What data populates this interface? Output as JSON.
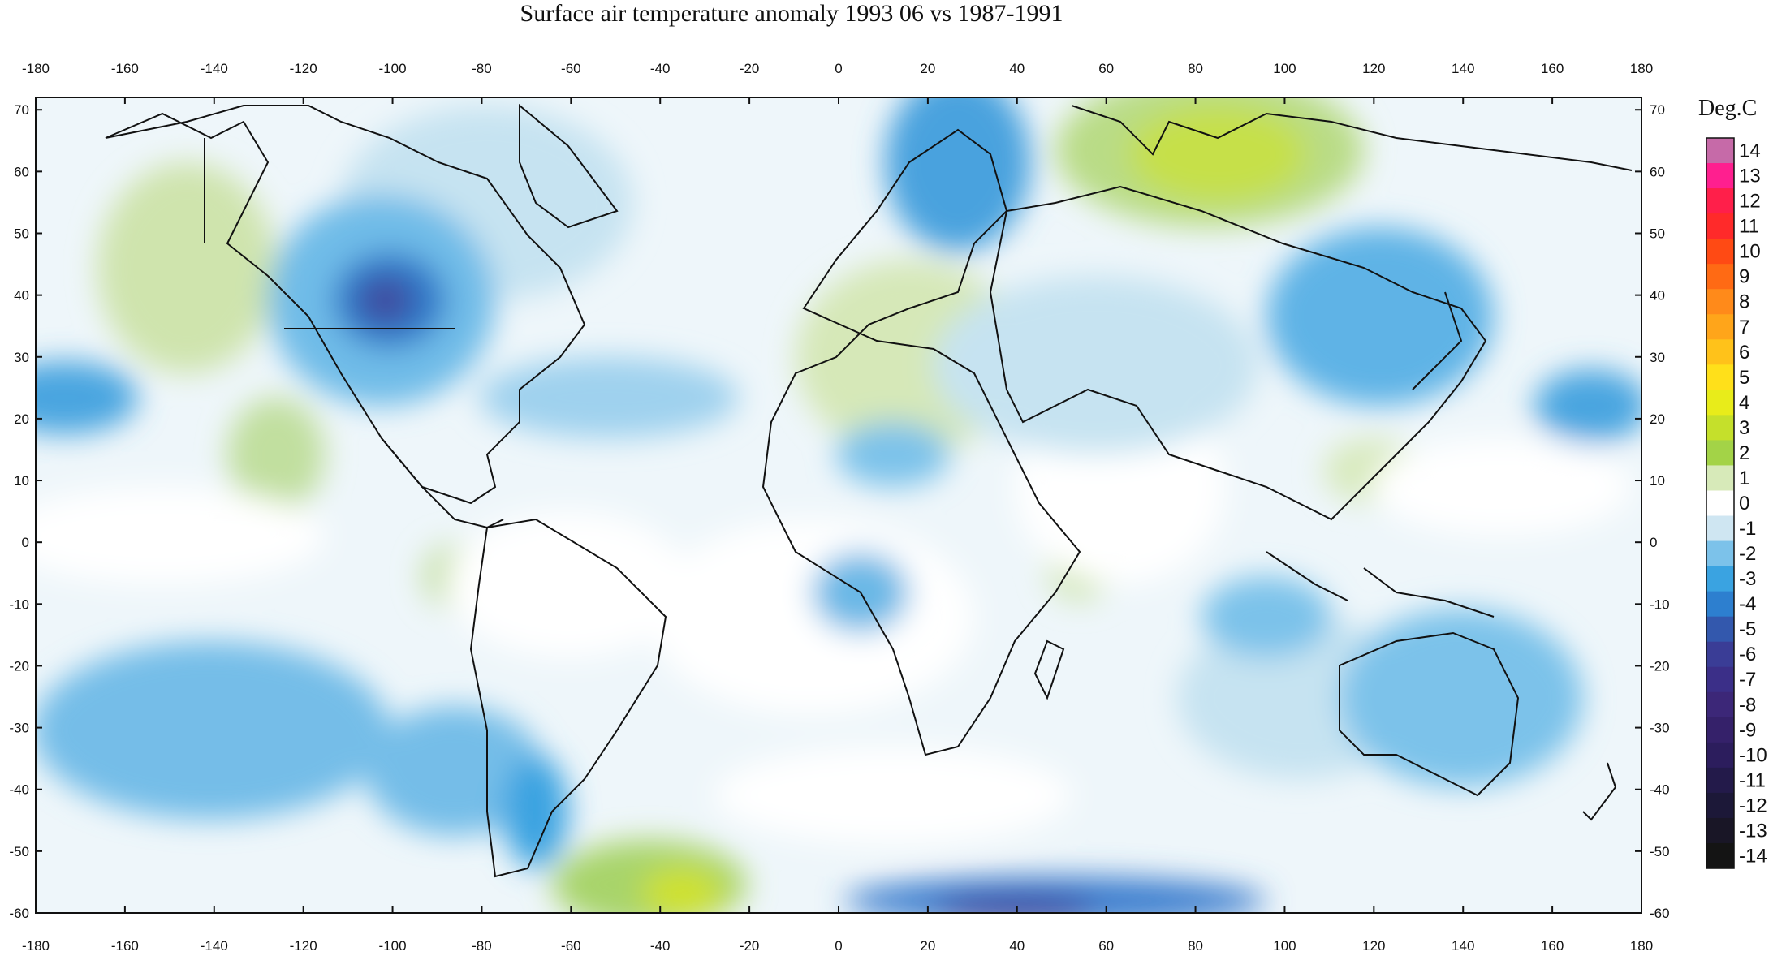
{
  "title": "Surface air temperature anomaly 1993 06 vs 1987-1991",
  "legend": {
    "title": "Deg.C",
    "ticks": [
      "14",
      "13",
      "12",
      "11",
      "10",
      "9",
      "8",
      "7",
      "6",
      "5",
      "4",
      "3",
      "2",
      "1",
      "0",
      "-1",
      "-2",
      "-3",
      "-4",
      "-5",
      "-6",
      "-7",
      "-8",
      "-9",
      "-10",
      "-11",
      "-12",
      "-13",
      "-14"
    ],
    "colors": [
      "#c66aa8",
      "#ff1f8f",
      "#ff1f4a",
      "#ff2a2a",
      "#ff4a14",
      "#ff6a14",
      "#ff8a1a",
      "#ffa51a",
      "#ffc21a",
      "#ffe01a",
      "#e8ec1a",
      "#c5e02b",
      "#a3d347",
      "#d7eab9",
      "#ffffff",
      "#cfe6f2",
      "#7cc2ea",
      "#3aa3e1",
      "#2d7fcf",
      "#3358ad",
      "#3a3d96",
      "#3b2f88",
      "#3c2778",
      "#35216a",
      "#2c1d5d",
      "#231a4a",
      "#1c1838",
      "#191626",
      "#141414"
    ]
  },
  "axes": {
    "lon_ticks": [
      "-180",
      "-160",
      "-140",
      "-120",
      "-100",
      "-80",
      "-60",
      "-40",
      "-20",
      "0",
      "20",
      "40",
      "60",
      "80",
      "100",
      "120",
      "140",
      "160",
      "180"
    ],
    "lat_ticks": [
      "70",
      "60",
      "50",
      "40",
      "30",
      "20",
      "10",
      "0",
      "-10",
      "-20",
      "-30",
      "-40",
      "-50",
      "-60"
    ]
  }
}
